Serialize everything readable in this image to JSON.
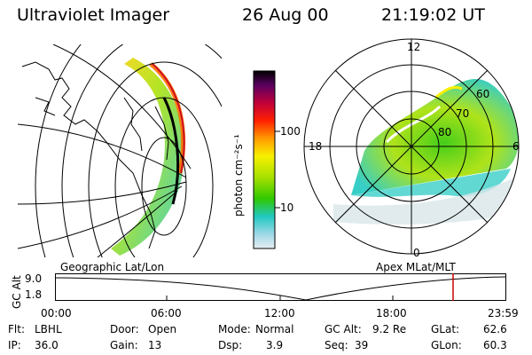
{
  "header": {
    "instrument": "Ultraviolet Imager",
    "date": "26 Aug 00",
    "time": "21:19:02 UT"
  },
  "colorbar": {
    "unit_label": "photon cm⁻²s⁻¹",
    "ticks": [
      "100",
      "10"
    ],
    "scale": "log"
  },
  "polar_plot": {
    "mlt_labels": {
      "top": "12",
      "left": "18",
      "right": "6",
      "bottom": "0"
    },
    "lat_labels": [
      "60",
      "70",
      "80"
    ]
  },
  "left_panel_label": "Geographic Lat/Lon",
  "right_panel_label": "Apex MLat/MLT",
  "altitude_plot": {
    "ylabel": "GC Alt",
    "yticks": [
      "9.0",
      "1.8"
    ],
    "xticks": [
      "00:00",
      "06:00",
      "12:00",
      "18:00",
      "23:59"
    ],
    "marker_color": "#cc0000"
  },
  "info": {
    "flt_label": "Flt:",
    "flt_value": "LBHL",
    "ip_label": "IP:",
    "ip_value": "36.0",
    "door_label": "Door:",
    "door_value": "Open",
    "gain_label": "Gain:",
    "gain_value": "13",
    "mode_label": "Mode:",
    "mode_value": "Normal",
    "dsp_label": "Dsp:",
    "dsp_value": "3.9",
    "gcalt_label": "GC Alt:",
    "gcalt_value": "9.2 Re",
    "seq_label": "Seq:",
    "seq_value": "39",
    "glat_label": "GLat:",
    "glat_value": "62.6",
    "glon_label": "GLon:",
    "glon_value": "60.3"
  }
}
